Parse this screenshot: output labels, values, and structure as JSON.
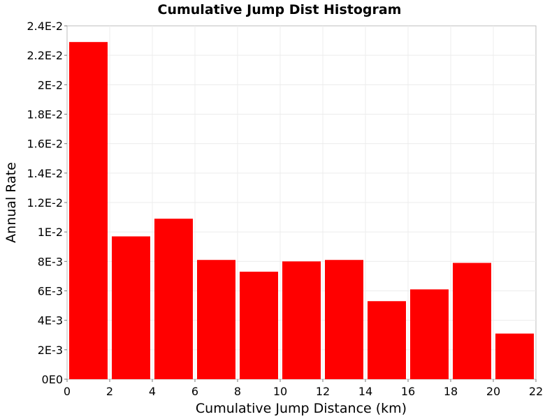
{
  "chart_data": {
    "type": "bar",
    "title": "Cumulative Jump Dist Histogram",
    "xlabel": "Cumulative Jump Distance (km)",
    "ylabel": "Annual Rate",
    "xlim": [
      0,
      22
    ],
    "ylim": [
      0,
      0.024
    ],
    "x_ticks": [
      0,
      2,
      4,
      6,
      8,
      10,
      12,
      14,
      16,
      18,
      20,
      22
    ],
    "x_tick_labels": [
      "0",
      "2",
      "4",
      "6",
      "8",
      "10",
      "12",
      "14",
      "16",
      "18",
      "20",
      "22"
    ],
    "y_ticks": [
      0,
      0.002,
      0.004,
      0.006,
      0.008,
      0.01,
      0.012,
      0.014,
      0.016,
      0.018,
      0.02,
      0.022,
      0.024
    ],
    "y_tick_labels": [
      "0E0",
      "2E-3",
      "4E-3",
      "6E-3",
      "8E-3",
      "1E-2",
      "1.2E-2",
      "1.4E-2",
      "1.6E-2",
      "1.8E-2",
      "2E-2",
      "2.2E-2",
      "2.4E-2"
    ],
    "bin_width": 2,
    "bin_starts": [
      0,
      2,
      4,
      6,
      8,
      10,
      12,
      14,
      16,
      18,
      20
    ],
    "values": [
      0.0229,
      0.0097,
      0.0109,
      0.0081,
      0.0073,
      0.008,
      0.0081,
      0.0053,
      0.0061,
      0.0079,
      0.0031
    ],
    "bar_color": "#ff0000",
    "grid": true,
    "grid_color": "#ececec"
  }
}
